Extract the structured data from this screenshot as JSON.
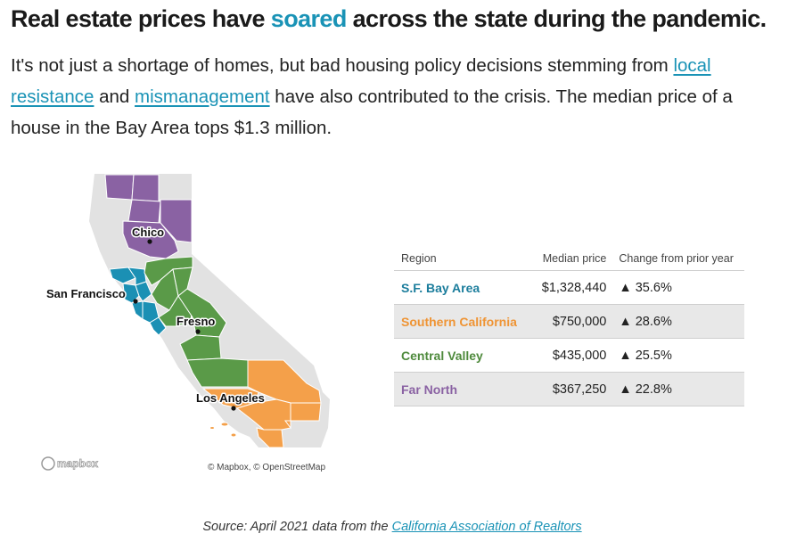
{
  "headline": {
    "before": "Real estate prices have ",
    "highlight": "soared",
    "after": " across the state during the pandemic.",
    "highlight_color": "#1a93b6"
  },
  "dek": {
    "part1": "It's not just a shortage of homes, but bad housing policy decisions stemming from ",
    "link1": "local resistance",
    "part2": " and ",
    "link2": "mismanagement",
    "part3": " have also contributed to the crisis. The median price of a house in the Bay Area tops $1.3 million.",
    "link_color": "#1a93b6"
  },
  "map": {
    "cities": [
      "Chico",
      "San Francisco",
      "Fresno",
      "Los Angeles"
    ],
    "attribution": "© Mapbox, © OpenStreetMap",
    "logo": "mapbox",
    "colors": {
      "land": "#e2e2e2",
      "sf_bay_area": "#1b90b4",
      "southern_california": "#f4a04a",
      "central_valley": "#5a9a48",
      "far_north": "#8a62a3"
    }
  },
  "table": {
    "headers": {
      "region": "Region",
      "median": "Median price",
      "change": "Change from prior year"
    },
    "rows": [
      {
        "region": "S.F. Bay Area",
        "median": "$1,328,440",
        "change": "▲ 35.6%",
        "color": "#1b7d9c"
      },
      {
        "region": "Southern California",
        "median": "$750,000",
        "change": "▲ 28.6%",
        "color": "#ef9434"
      },
      {
        "region": "Central Valley",
        "median": "$435,000",
        "change": "▲ 25.5%",
        "color": "#4e8a3c"
      },
      {
        "region": "Far North",
        "median": "$367,250",
        "change": "▲ 22.8%",
        "color": "#8a62a3"
      }
    ]
  },
  "source": {
    "prefix": "Source: April 2021 data from the ",
    "link": "California Association of Realtors"
  }
}
